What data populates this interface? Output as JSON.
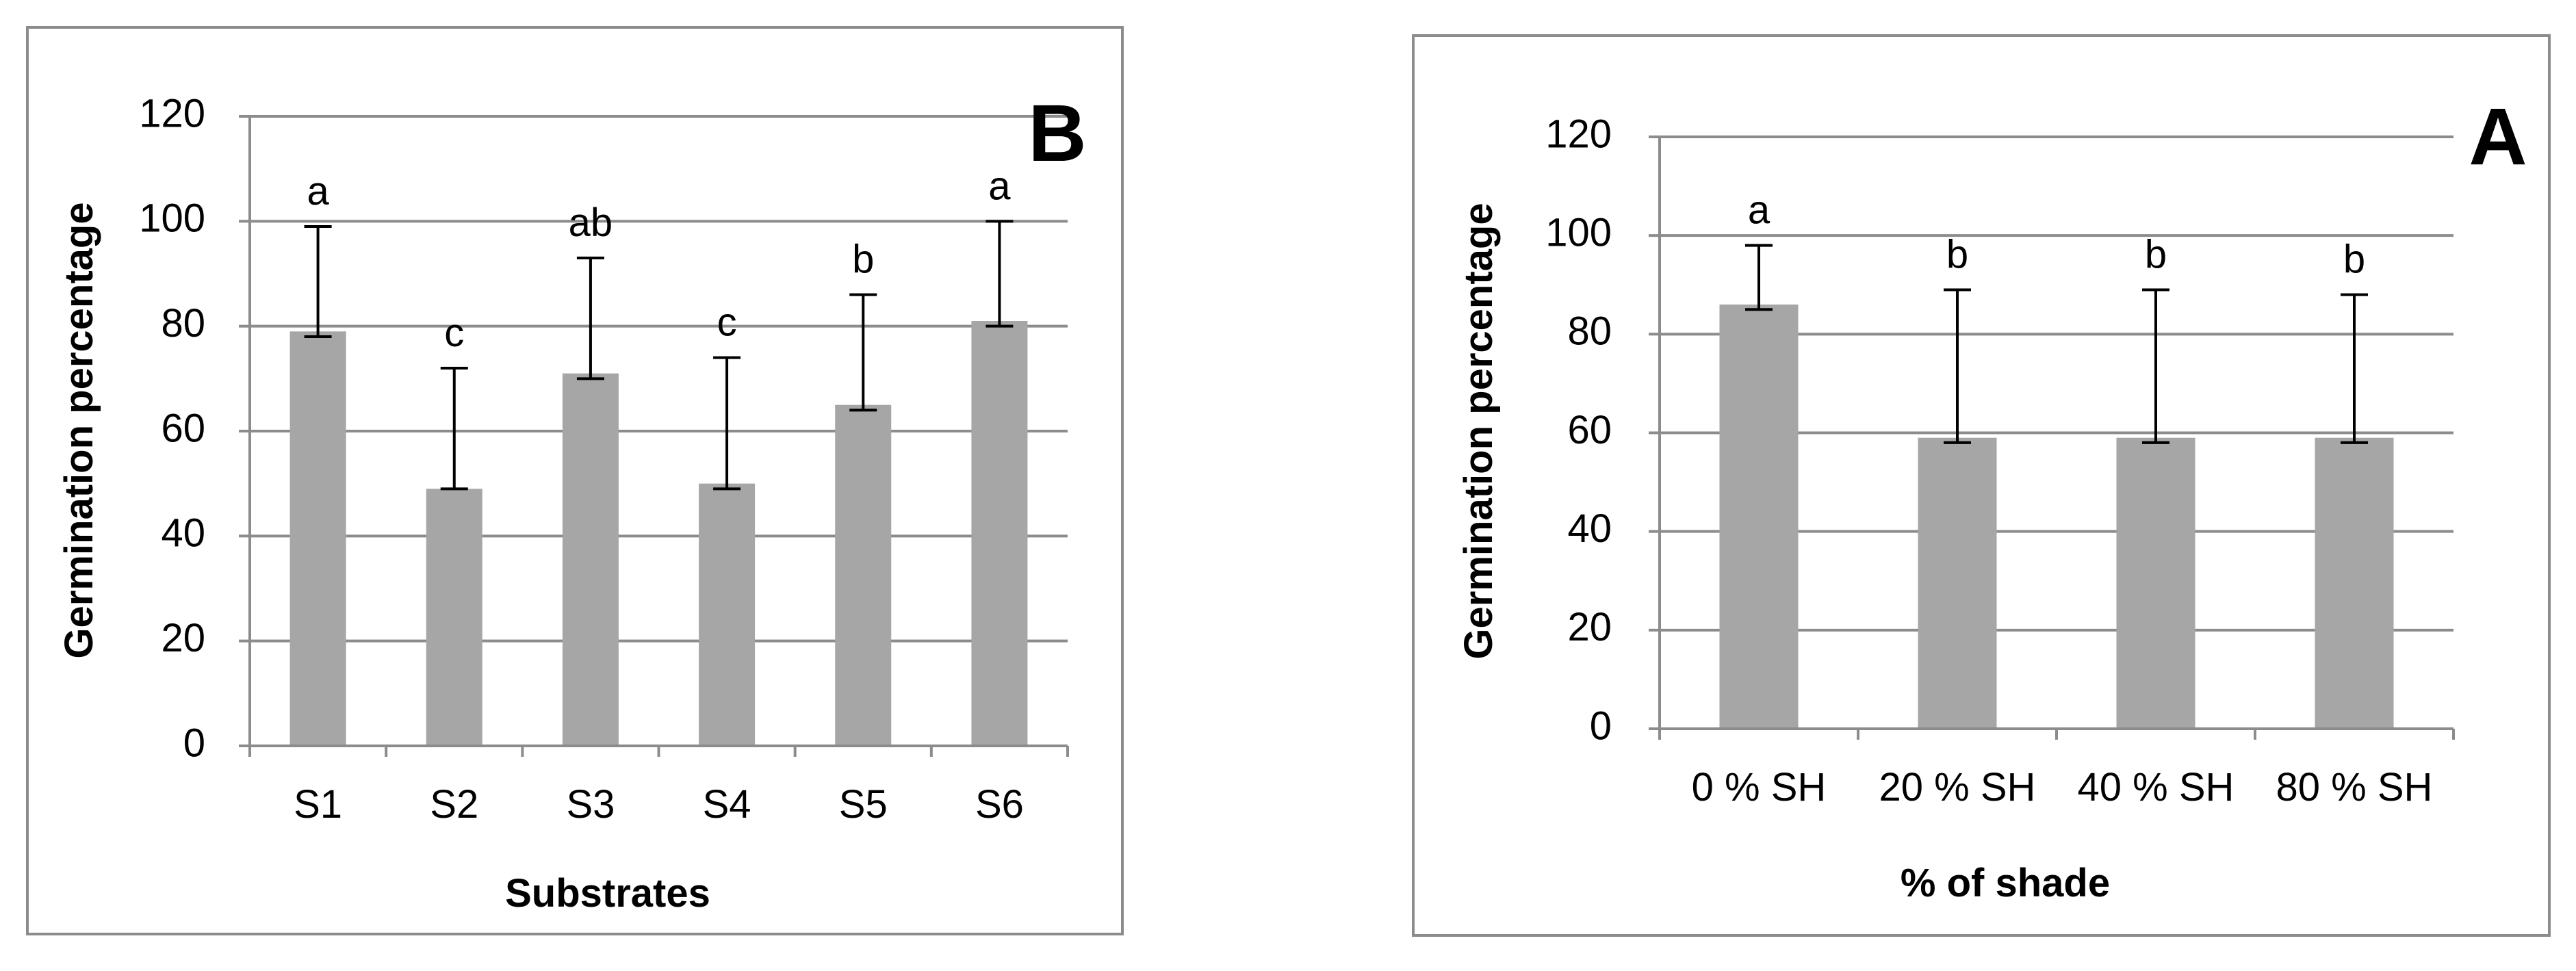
{
  "chart_data": [
    {
      "type": "bar",
      "panel_label": "B",
      "title": "",
      "xlabel": "Substrates",
      "ylabel": "Germination percentage",
      "ylim": [
        0,
        120
      ],
      "yticks": [
        "0",
        "20",
        "40",
        "60",
        "80",
        "100",
        "120"
      ],
      "grid": true,
      "categories": [
        "S1",
        "S2",
        "S3",
        "S4",
        "S5",
        "S6"
      ],
      "values": [
        79,
        49,
        71,
        50,
        65,
        81
      ],
      "error_upper": [
        99,
        72,
        93,
        74,
        86,
        100
      ],
      "error_lower": [
        78,
        49,
        70,
        49,
        64,
        80
      ],
      "significance": [
        "a",
        "c",
        "ab",
        "c",
        "b",
        "a"
      ],
      "bar_color": "#a6a6a6"
    },
    {
      "type": "bar",
      "panel_label": "A",
      "title": "",
      "xlabel": "% of shade",
      "ylabel": "Germination percentage",
      "ylim": [
        0,
        120
      ],
      "yticks": [
        "0",
        "20",
        "40",
        "60",
        "80",
        "100",
        "120"
      ],
      "grid": true,
      "categories": [
        "0 % SH",
        "20 % SH",
        "40 % SH",
        "80 % SH"
      ],
      "values": [
        86,
        59,
        59,
        59
      ],
      "error_upper": [
        98,
        89,
        89,
        88
      ],
      "error_lower": [
        85,
        58,
        58,
        58
      ],
      "significance": [
        "a",
        "b",
        "b",
        "b"
      ],
      "bar_color": "#a6a6a6"
    }
  ]
}
